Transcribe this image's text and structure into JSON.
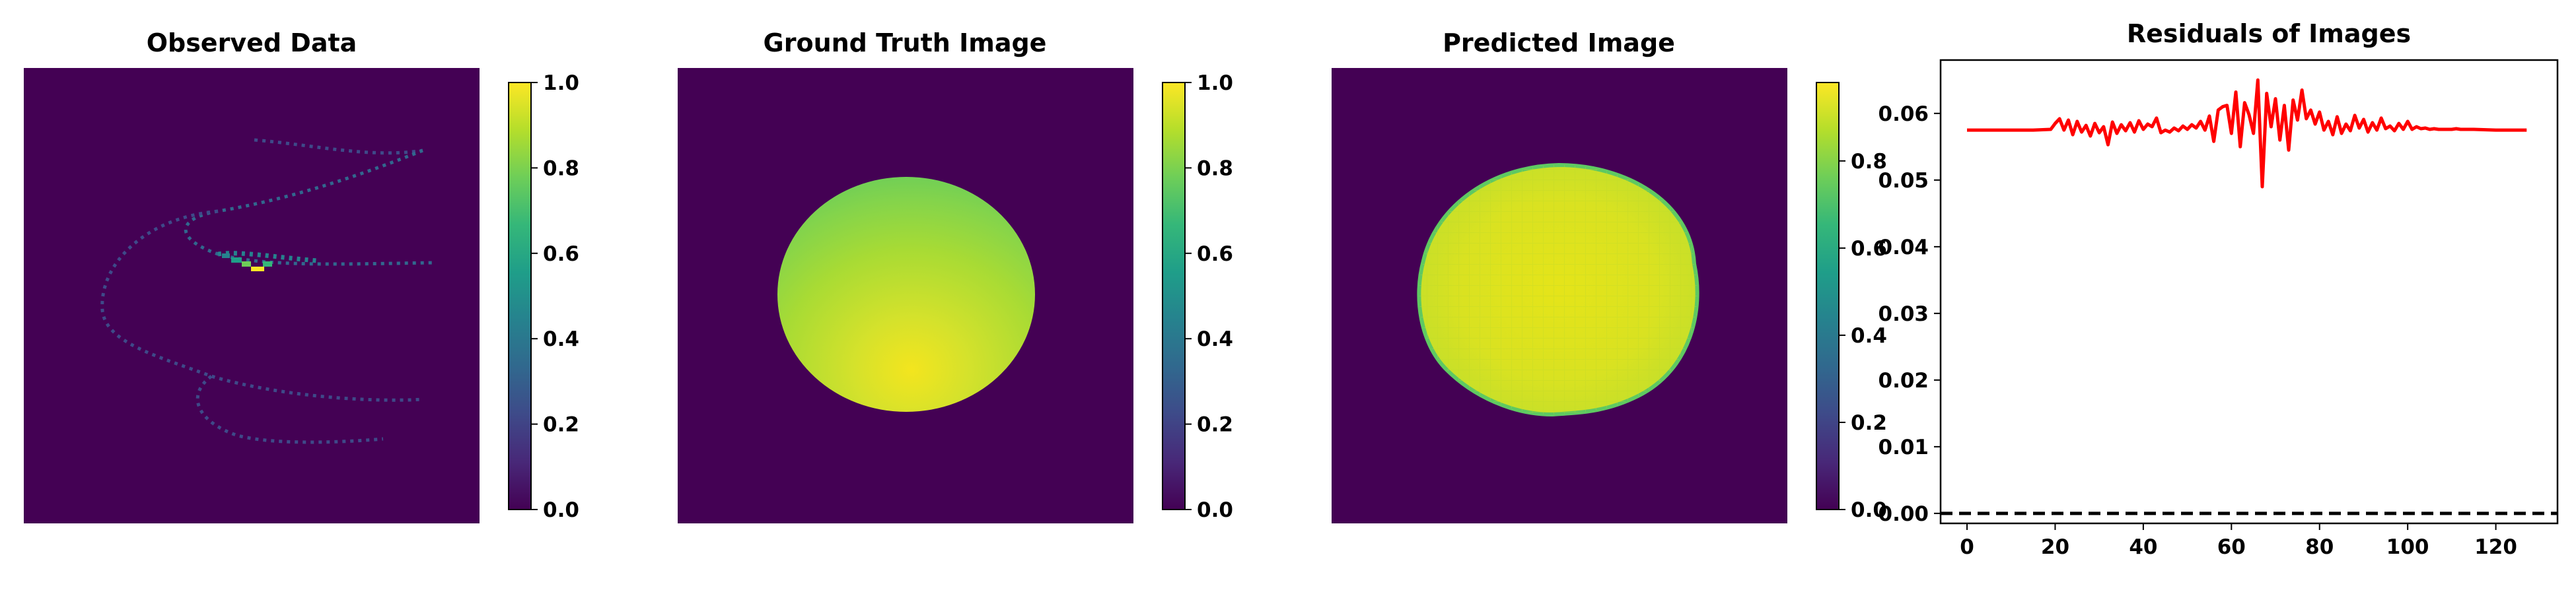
{
  "panels": {
    "observed": {
      "title": "Observed Data"
    },
    "ground_truth": {
      "title": "Ground Truth Image"
    },
    "predicted": {
      "title": "Predicted Image"
    }
  },
  "colorbars": [
    {
      "panel": "observed",
      "colormap": "viridis",
      "range": [
        0,
        1.0
      ],
      "ticks": [
        "0.0",
        "0.2",
        "0.4",
        "0.6",
        "0.8",
        "1.0"
      ]
    },
    {
      "panel": "ground_truth",
      "colormap": "viridis",
      "range": [
        0,
        1.0
      ],
      "ticks": [
        "0.0",
        "0.2",
        "0.4",
        "0.6",
        "0.8",
        "1.0"
      ]
    },
    {
      "panel": "predicted",
      "colormap": "viridis",
      "range": [
        0,
        0.98
      ],
      "ticks": [
        "0.0",
        "0.2",
        "0.4",
        "0.6",
        "0.8"
      ]
    }
  ],
  "colors": {
    "viridis_dark": "#440154",
    "viridis_stops": [
      "#440154",
      "#482878",
      "#3e4a89",
      "#31688e",
      "#26828e",
      "#1f9e89",
      "#35b779",
      "#6ece58",
      "#b5de2b",
      "#fde725"
    ],
    "residual_line": "#ff0000",
    "zero_line": "#000000"
  },
  "chart_data": {
    "type": "line",
    "title": "Residuals of Images",
    "xlabel": "",
    "ylabel": "",
    "xlim": [
      -6,
      134
    ],
    "ylim": [
      -0.0015,
      0.068
    ],
    "xticks": [
      0,
      20,
      40,
      60,
      80,
      100,
      120
    ],
    "yticks": [
      0.0,
      0.01,
      0.02,
      0.03,
      0.04,
      0.05,
      0.06
    ],
    "ytick_labels": [
      "0.00",
      "0.01",
      "0.02",
      "0.03",
      "0.04",
      "0.05",
      "0.06"
    ],
    "grid": false,
    "series": [
      {
        "x": [
          0,
          5,
          10,
          15,
          19,
          20,
          21,
          22,
          23,
          24,
          25,
          26,
          27,
          28,
          29,
          30,
          31,
          32,
          33,
          34,
          35,
          36,
          37,
          38,
          39,
          40,
          41,
          42,
          43,
          44,
          45,
          46,
          47,
          48,
          49,
          50,
          51,
          52,
          53,
          54,
          55,
          56,
          57,
          58,
          59,
          60,
          61,
          62,
          63,
          64,
          65,
          66,
          67,
          68,
          69,
          70,
          71,
          72,
          73,
          74,
          75,
          76,
          77,
          78,
          79,
          80,
          81,
          82,
          83,
          84,
          85,
          86,
          87,
          88,
          89,
          90,
          91,
          92,
          93,
          94,
          95,
          96,
          97,
          98,
          99,
          100,
          101,
          102,
          103,
          104,
          105,
          106,
          107,
          108,
          109,
          110,
          111,
          112,
          115,
          120,
          125,
          127
        ],
        "y": [
          0.0575,
          0.0575,
          0.0575,
          0.0575,
          0.0576,
          0.0585,
          0.0592,
          0.0575,
          0.059,
          0.0568,
          0.0588,
          0.0572,
          0.0582,
          0.0566,
          0.0585,
          0.0571,
          0.058,
          0.0553,
          0.0587,
          0.057,
          0.0583,
          0.0574,
          0.0586,
          0.0572,
          0.0589,
          0.0576,
          0.0584,
          0.058,
          0.0593,
          0.0571,
          0.0575,
          0.0572,
          0.0578,
          0.0574,
          0.0581,
          0.0576,
          0.0583,
          0.0578,
          0.0588,
          0.0575,
          0.0596,
          0.0558,
          0.0605,
          0.061,
          0.0612,
          0.057,
          0.0632,
          0.055,
          0.0616,
          0.0598,
          0.057,
          0.065,
          0.049,
          0.063,
          0.058,
          0.0622,
          0.056,
          0.0612,
          0.0545,
          0.062,
          0.059,
          0.0635,
          0.0592,
          0.0605,
          0.0584,
          0.0602,
          0.0575,
          0.0588,
          0.0568,
          0.0595,
          0.057,
          0.0584,
          0.0574,
          0.0597,
          0.0578,
          0.0591,
          0.0572,
          0.0586,
          0.0575,
          0.0593,
          0.0577,
          0.0581,
          0.0574,
          0.0585,
          0.0576,
          0.0588,
          0.0576,
          0.058,
          0.0577,
          0.0578,
          0.0576,
          0.0577,
          0.0576,
          0.0576,
          0.0576,
          0.0576,
          0.0577,
          0.0576,
          0.0576,
          0.0575,
          0.0575,
          0.0575
        ]
      }
    ],
    "reference_lines": [
      {
        "y": 0.0,
        "style": "dashed"
      }
    ]
  }
}
